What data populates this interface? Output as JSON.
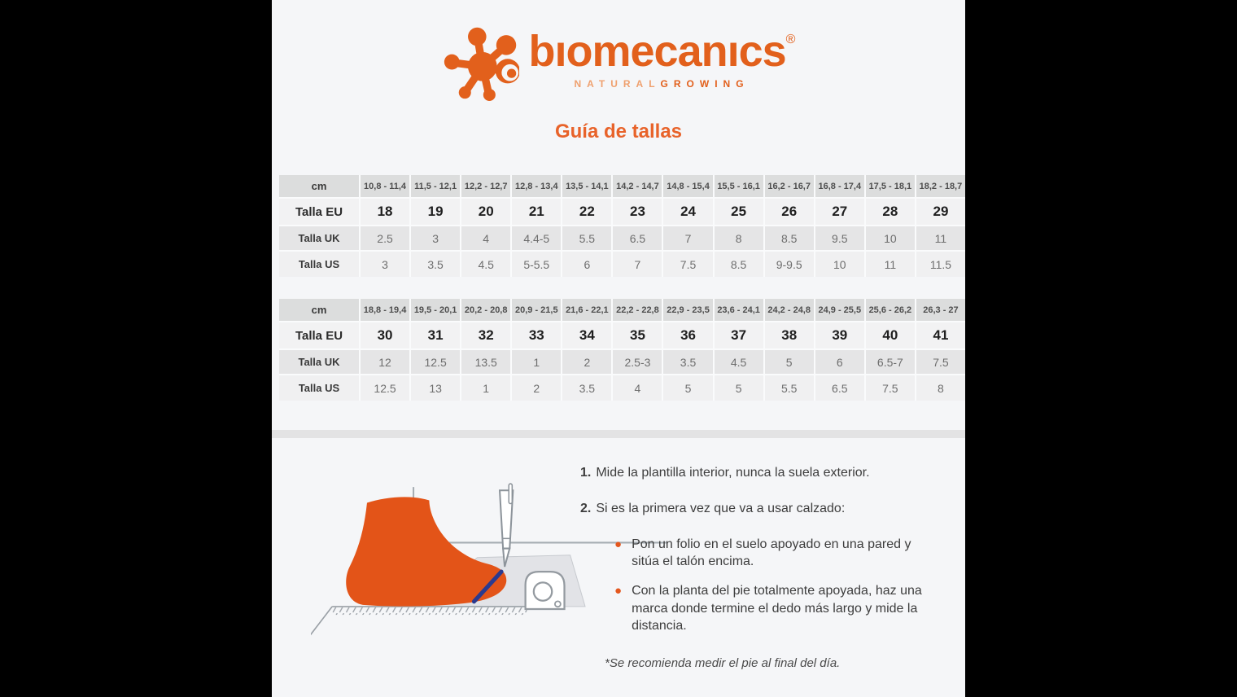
{
  "header": {
    "brand": "bıomecanıcs",
    "registered": "®",
    "tagline_natural": "NATURAL",
    "tagline_growing": "GROWING",
    "title": "Guía de tallas"
  },
  "colors": {
    "accent_orange": "#e2601c",
    "title_orange": "#e8632a",
    "foot_orange": "#e35418",
    "bullet_orange": "#e4571e",
    "mark_blue": "#2b3a8f",
    "row_cm_bg": "#dcdddd",
    "row_eu_bg": "#f2f2f3",
    "row_uk_bg": "#e5e5e6",
    "row_us_bg": "#f0f0f1",
    "page_bg": "#f5f6f8"
  },
  "tables": [
    {
      "rows": [
        {
          "label": "cm",
          "values": [
            "10,8 - 11,4",
            "11,5 - 12,1",
            "12,2 - 12,7",
            "12,8 - 13,4",
            "13,5 - 14,1",
            "14,2 - 14,7",
            "14,8 - 15,4",
            "15,5 - 16,1",
            "16,2 - 16,7",
            "16,8 - 17,4",
            "17,5 - 18,1",
            "18,2 - 18,7"
          ]
        },
        {
          "label": "Talla EU",
          "values": [
            "18",
            "19",
            "20",
            "21",
            "22",
            "23",
            "24",
            "25",
            "26",
            "27",
            "28",
            "29"
          ]
        },
        {
          "label": "Talla UK",
          "values": [
            "2.5",
            "3",
            "4",
            "4.4-5",
            "5.5",
            "6.5",
            "7",
            "8",
            "8.5",
            "9.5",
            "10",
            "11"
          ]
        },
        {
          "label": "Talla US",
          "values": [
            "3",
            "3.5",
            "4.5",
            "5-5.5",
            "6",
            "7",
            "7.5",
            "8.5",
            "9-9.5",
            "10",
            "11",
            "11.5"
          ]
        }
      ]
    },
    {
      "rows": [
        {
          "label": "cm",
          "values": [
            "18,8 - 19,4",
            "19,5 - 20,1",
            "20,2 - 20,8",
            "20,9 - 21,5",
            "21,6 - 22,1",
            "22,2 - 22,8",
            "22,9 - 23,5",
            "23,6 - 24,1",
            "24,2 - 24,8",
            "24,9 - 25,5",
            "25,6 - 26,2",
            "26,3 - 27"
          ]
        },
        {
          "label": "Talla EU",
          "values": [
            "30",
            "31",
            "32",
            "33",
            "34",
            "35",
            "36",
            "37",
            "38",
            "39",
            "40",
            "41"
          ]
        },
        {
          "label": "Talla UK",
          "values": [
            "12",
            "12.5",
            "13.5",
            "1",
            "2",
            "2.5-3",
            "3.5",
            "4.5",
            "5",
            "6",
            "6.5-7",
            "7.5"
          ]
        },
        {
          "label": "Talla US",
          "values": [
            "12.5",
            "13",
            "1",
            "2",
            "3.5",
            "4",
            "5",
            "5",
            "5.5",
            "6.5",
            "7.5",
            "8"
          ]
        }
      ]
    }
  ],
  "instructions": {
    "steps": [
      {
        "num": "1.",
        "text": "Mide la plantilla interior, nunca la suela exterior."
      },
      {
        "num": "2.",
        "text": "Si es la primera vez que va a usar calzado:"
      }
    ],
    "bullets": [
      "Pon un folio en el suelo apoyado en una pared y sitúa el talón encima.",
      "Con la planta del pie totalmente apoyada, haz una marca donde termine el dedo más largo y mide la distancia."
    ],
    "footnote": "*Se recomienda medir el pie al final del día."
  }
}
